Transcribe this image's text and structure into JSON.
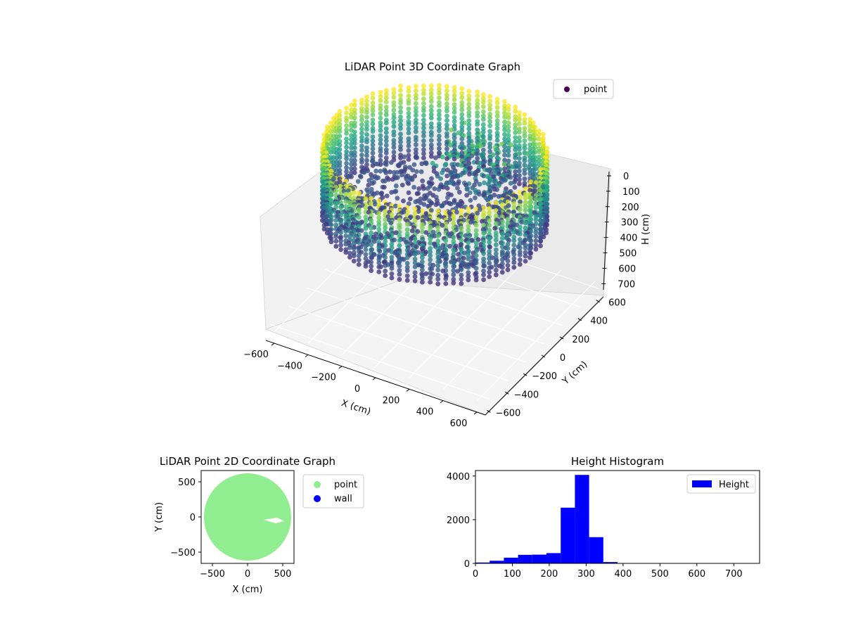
{
  "chart_data": [
    {
      "type": "scatter",
      "projection": "3d",
      "title": "LiDAR Point 3D Coordinate Graph",
      "xlabel": "X (cm)",
      "ylabel": "Y (cm)",
      "zlabel": "H (cm)",
      "xlim": [
        -650,
        650
      ],
      "ylim": [
        -650,
        650
      ],
      "zlim": [
        0,
        750
      ],
      "z_inverted": true,
      "xticks": [
        "−600",
        "−400",
        "−200",
        "0",
        "200",
        "400",
        "600"
      ],
      "yticks": [
        "−600",
        "−400",
        "−200",
        "0",
        "200",
        "400",
        "600"
      ],
      "zticks": [
        "0",
        "100",
        "200",
        "300",
        "400",
        "500",
        "600",
        "700"
      ],
      "colormap": "viridis",
      "grid": true,
      "legend": {
        "placement": "top-right",
        "entries": [
          "point"
        ]
      },
      "series": [
        {
          "name": "point",
          "color": "#440154",
          "description_of_shape": "ring of wall points radius ~580 cm, heights 0-350 cm, with floor points inside",
          "wall_radius": 580,
          "height_range": [
            0,
            350
          ]
        }
      ]
    },
    {
      "type": "scatter",
      "title": "LiDAR Point 2D Coordinate Graph",
      "xlabel": "X (cm)",
      "ylabel": "Y (cm)",
      "xlim": [
        -660,
        660
      ],
      "ylim": [
        -660,
        660
      ],
      "xticks": [
        "−500",
        "0",
        "500"
      ],
      "yticks": [
        "−500",
        "0",
        "500"
      ],
      "legend": {
        "placement": "outside-right",
        "entries": [
          "point",
          "wall"
        ]
      },
      "series": [
        {
          "name": "point",
          "color": "#90ee90",
          "region": "disk",
          "radius": 620,
          "center": [
            0,
            0
          ]
        },
        {
          "name": "wall",
          "color": "#0000ff"
        }
      ]
    },
    {
      "type": "bar",
      "subtype": "histogram",
      "title": "Height Histogram",
      "xlim": [
        0,
        770
      ],
      "ylim": [
        0,
        4250
      ],
      "xticks": [
        "0",
        "100",
        "200",
        "300",
        "400",
        "500",
        "600",
        "700"
      ],
      "yticks": [
        "0",
        "2000",
        "4000"
      ],
      "bar_color": "#0000ff",
      "legend": {
        "placement": "top-right",
        "entries": [
          "Height"
        ]
      },
      "bin_edges": [
        0,
        38.5,
        77,
        115.5,
        154,
        192.5,
        231,
        269.5,
        308,
        346.5,
        385,
        423.5,
        462,
        500.5,
        539,
        577.5,
        616,
        654.5,
        693,
        731.5,
        770
      ],
      "values": [
        40,
        120,
        260,
        390,
        400,
        470,
        2550,
        4050,
        1200,
        60,
        10,
        5,
        3,
        2,
        2,
        2,
        1,
        1,
        1,
        0
      ],
      "series": [
        {
          "name": "Height",
          "values": [
            40,
            120,
            260,
            390,
            400,
            470,
            2550,
            4050,
            1200,
            60,
            10,
            5,
            3,
            2,
            2,
            2,
            1,
            1,
            1,
            0
          ]
        }
      ]
    }
  ]
}
